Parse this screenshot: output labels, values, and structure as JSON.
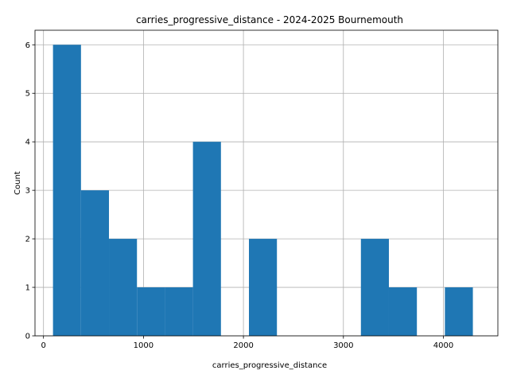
{
  "chart_data": {
    "type": "bar",
    "title": "carries_progressive_distance - 2024-2025 Bournemouth",
    "xlabel": "carries_progressive_distance",
    "ylabel": "Count",
    "xlim": [
      -85,
      4545
    ],
    "ylim": [
      0,
      6.3
    ],
    "xticks": [
      0,
      1000,
      2000,
      3000,
      4000
    ],
    "xtick_labels": [
      "0",
      "1000",
      "2000",
      "3000",
      "4000"
    ],
    "yticks": [
      0,
      1,
      2,
      3,
      4,
      5,
      6
    ],
    "ytick_labels": [
      "0",
      "1",
      "2",
      "3",
      "4",
      "5",
      "6"
    ],
    "grid": true,
    "bar_color": "#1f77b4",
    "bins": [
      {
        "x0": 95,
        "x1": 375,
        "count": 6
      },
      {
        "x0": 375,
        "x1": 655,
        "count": 3
      },
      {
        "x0": 655,
        "x1": 935,
        "count": 2
      },
      {
        "x0": 935,
        "x1": 1215,
        "count": 1
      },
      {
        "x0": 1215,
        "x1": 1495,
        "count": 1
      },
      {
        "x0": 1495,
        "x1": 1775,
        "count": 4
      },
      {
        "x0": 1775,
        "x1": 2055,
        "count": 0
      },
      {
        "x0": 2055,
        "x1": 2335,
        "count": 2
      },
      {
        "x0": 2335,
        "x1": 2615,
        "count": 0
      },
      {
        "x0": 2615,
        "x1": 2895,
        "count": 0
      },
      {
        "x0": 2895,
        "x1": 3175,
        "count": 0
      },
      {
        "x0": 3175,
        "x1": 3455,
        "count": 2
      },
      {
        "x0": 3455,
        "x1": 3735,
        "count": 1
      },
      {
        "x0": 3735,
        "x1": 4015,
        "count": 0
      },
      {
        "x0": 4015,
        "x1": 4295,
        "count": 1
      }
    ]
  }
}
